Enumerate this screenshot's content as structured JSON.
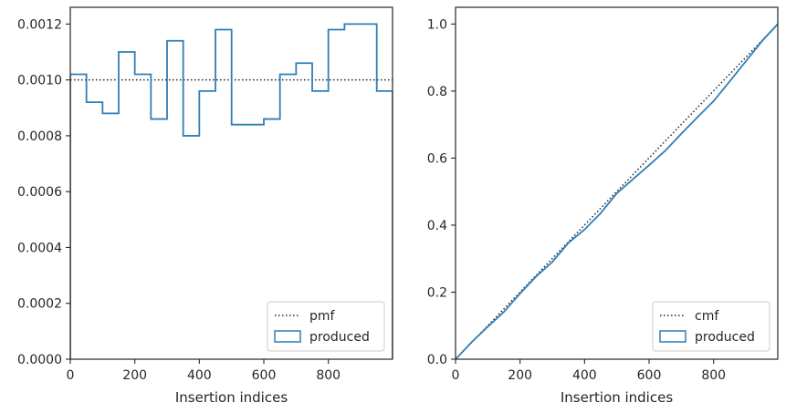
{
  "chart_data": [
    {
      "type": "step",
      "xlabel": "Insertion indices",
      "ylabel": "",
      "xlim": [
        0,
        999
      ],
      "ylim": [
        0,
        0.00126
      ],
      "xticks": [
        0,
        200,
        400,
        600,
        800
      ],
      "xtick_labels": [
        "0",
        "200",
        "400",
        "600",
        "800"
      ],
      "yticks": [
        0,
        0.0002,
        0.0004,
        0.0006,
        0.0008,
        0.001,
        0.0012
      ],
      "ytick_labels": [
        "0.0000",
        "0.0002",
        "0.0004",
        "0.0006",
        "0.0008",
        "0.0010",
        "0.0012"
      ],
      "legend_position": "bottom-right",
      "series": [
        {
          "name": "pmf",
          "style": "dotted",
          "color": "#222222",
          "x": [
            0,
            999
          ],
          "values": [
            0.001,
            0.001
          ]
        },
        {
          "name": "produced",
          "style": "histogram-step",
          "color": "#2f7fb8",
          "bin_edges": [
            0,
            50,
            100,
            150,
            200,
            250,
            300,
            350,
            400,
            450,
            500,
            550,
            600,
            650,
            700,
            750,
            800,
            850,
            900,
            950,
            999
          ],
          "values": [
            0.00102,
            0.00092,
            0.00088,
            0.0011,
            0.00102,
            0.00086,
            0.00114,
            0.0008,
            0.00096,
            0.00118,
            0.00084,
            0.00084,
            0.00086,
            0.00102,
            0.00106,
            0.00096,
            0.00118,
            0.0012,
            0.0012,
            0.00096
          ]
        }
      ]
    },
    {
      "type": "line",
      "xlabel": "Insertion indices",
      "ylabel": "",
      "xlim": [
        0,
        999
      ],
      "ylim": [
        0,
        1.05
      ],
      "xticks": [
        0,
        200,
        400,
        600,
        800
      ],
      "xtick_labels": [
        "0",
        "200",
        "400",
        "600",
        "800"
      ],
      "yticks": [
        0,
        0.2,
        0.4,
        0.6,
        0.8,
        1.0
      ],
      "ytick_labels": [
        "0.0",
        "0.2",
        "0.4",
        "0.6",
        "0.8",
        "1.0"
      ],
      "legend_position": "bottom-right",
      "series": [
        {
          "name": "cmf",
          "style": "dotted",
          "color": "#222222",
          "x": [
            0,
            999
          ],
          "values": [
            0,
            1.0
          ]
        },
        {
          "name": "produced",
          "style": "solid",
          "color": "#2f7fb8",
          "x": [
            0,
            50,
            100,
            150,
            200,
            250,
            300,
            350,
            400,
            450,
            500,
            550,
            600,
            650,
            700,
            750,
            800,
            850,
            900,
            950,
            999
          ],
          "values": [
            0,
            0.051,
            0.097,
            0.141,
            0.196,
            0.247,
            0.29,
            0.347,
            0.387,
            0.436,
            0.495,
            0.537,
            0.579,
            0.622,
            0.673,
            0.722,
            0.77,
            0.829,
            0.889,
            0.949,
            1.0
          ]
        }
      ]
    }
  ]
}
